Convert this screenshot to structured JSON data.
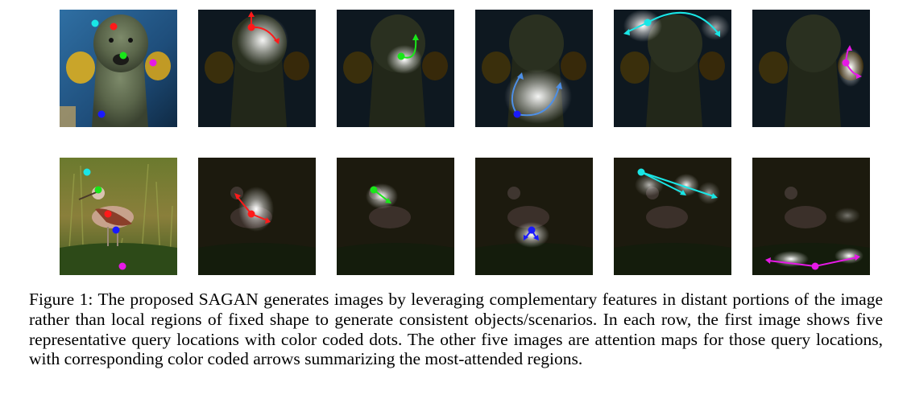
{
  "figure": {
    "caption": "Figure 1: The proposed SAGAN generates images by leveraging complementary features in distant portions of the image rather than local regions of fixed shape to generate consistent objects/scenarios. In each row, the first image shows five representative query locations with color coded dots. The other five images are attention maps for those query locations, with corresponding color coded arrows summarizing the most-attended regions."
  },
  "query_colors": {
    "red": "#ff1a1a",
    "green": "#19e619",
    "blue": "#1a1aff",
    "cyan": "#19e6e6",
    "magenta": "#e619e6",
    "attention_blue": "#4d8fe6"
  },
  "rows": [
    {
      "subject": "dog",
      "query_dots": [
        "cyan",
        "red",
        "green",
        "magenta",
        "blue"
      ],
      "attention_panels": [
        "red",
        "green",
        "blue",
        "cyan",
        "magenta"
      ]
    },
    {
      "subject": "bird",
      "query_dots": [
        "cyan",
        "green",
        "red",
        "blue",
        "magenta"
      ],
      "attention_panels": [
        "red",
        "green",
        "blue",
        "cyan",
        "magenta"
      ]
    }
  ]
}
